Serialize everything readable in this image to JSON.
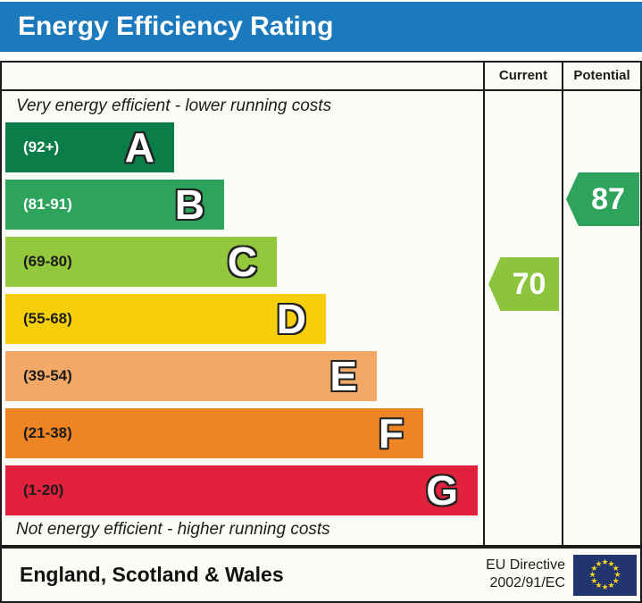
{
  "title": "Energy Efficiency Rating",
  "colors": {
    "title_bar": "#1b7abe",
    "border": "#1c1c1c",
    "panel_bg": "#fcfcf6",
    "eu_flag_bg": "#23356e",
    "eu_star": "#f7d117"
  },
  "header": {
    "current_label": "Current",
    "potential_label": "Potential"
  },
  "captions": {
    "top": "Very energy efficient - lower running costs",
    "bottom": "Not energy efficient - higher running costs"
  },
  "bands": [
    {
      "letter": "A",
      "range": "(92+)",
      "color": "#0b7d49",
      "range_text_color": "#ffffff"
    },
    {
      "letter": "B",
      "range": "(81-91)",
      "color": "#2da35c",
      "range_text_color": "#ffffff"
    },
    {
      "letter": "C",
      "range": "(69-80)",
      "color": "#93c83d",
      "range_text_color": "#1c1c1c"
    },
    {
      "letter": "D",
      "range": "(55-68)",
      "color": "#f6cf0a",
      "range_text_color": "#1c1c1c"
    },
    {
      "letter": "E",
      "range": "(39-54)",
      "color": "#f2a866",
      "range_text_color": "#1c1c1c"
    },
    {
      "letter": "F",
      "range": "(21-38)",
      "color": "#ee8424",
      "range_text_color": "#1c1c1c"
    },
    {
      "letter": "G",
      "range": "(1-20)",
      "color": "#e2223c",
      "range_text_color": "#1c1c1c"
    }
  ],
  "ratings": {
    "current": {
      "value": "70",
      "band": "C",
      "color": "#8cc43e"
    },
    "potential": {
      "value": "87",
      "band": "B",
      "color": "#2da35c"
    }
  },
  "footer": {
    "region": "England, Scotland & Wales",
    "directive_line1": "EU Directive",
    "directive_line2": "2002/91/EC"
  },
  "chart_data": {
    "type": "bar",
    "title": "Energy Efficiency Rating",
    "categories": [
      "A",
      "B",
      "C",
      "D",
      "E",
      "F",
      "G"
    ],
    "band_ranges": [
      "92+",
      "81-91",
      "69-80",
      "55-68",
      "39-54",
      "21-38",
      "1-20"
    ],
    "band_colors": [
      "#0b7d49",
      "#2da35c",
      "#93c83d",
      "#f6cf0a",
      "#f2a866",
      "#ee8424",
      "#e2223c"
    ],
    "current_rating": 70,
    "current_band": "C",
    "potential_rating": 87,
    "potential_band": "B",
    "scale": [
      1,
      100
    ],
    "region_note": "England, Scotland & Wales",
    "legend": [
      "Current",
      "Potential"
    ]
  }
}
